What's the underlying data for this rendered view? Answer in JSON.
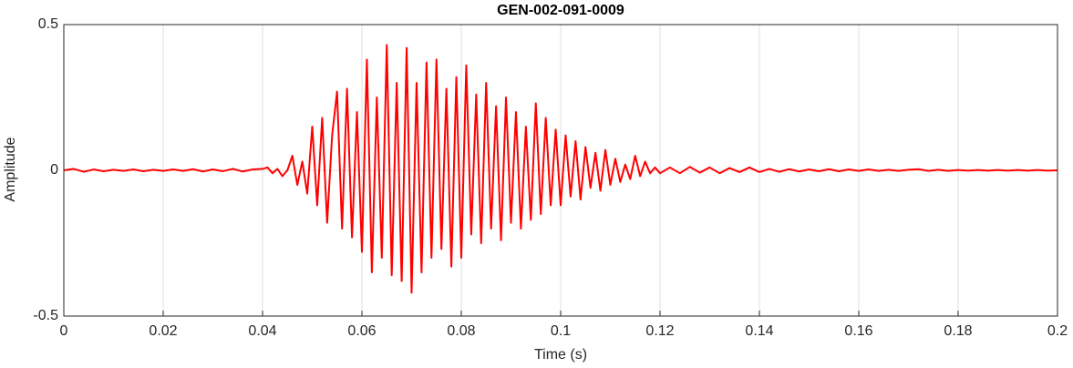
{
  "chart_data": {
    "type": "line",
    "title": "GEN-002-091-0009",
    "xlabel": "Time (s)",
    "ylabel": "Amplitude",
    "x": [
      0,
      0.002,
      0.004,
      0.006,
      0.008,
      0.01,
      0.012,
      0.014,
      0.016,
      0.018,
      0.02,
      0.022,
      0.024,
      0.026,
      0.028,
      0.03,
      0.032,
      0.034,
      0.036,
      0.038,
      0.04,
      0.041,
      0.042,
      0.043,
      0.044,
      0.045,
      0.046,
      0.047,
      0.048,
      0.049,
      0.05,
      0.051,
      0.052,
      0.053,
      0.054,
      0.055,
      0.056,
      0.057,
      0.058,
      0.059,
      0.06,
      0.061,
      0.062,
      0.063,
      0.064,
      0.065,
      0.066,
      0.067,
      0.068,
      0.069,
      0.07,
      0.071,
      0.072,
      0.073,
      0.074,
      0.075,
      0.076,
      0.077,
      0.078,
      0.079,
      0.08,
      0.081,
      0.082,
      0.083,
      0.084,
      0.085,
      0.086,
      0.087,
      0.088,
      0.089,
      0.09,
      0.091,
      0.092,
      0.093,
      0.094,
      0.095,
      0.096,
      0.097,
      0.098,
      0.099,
      0.1,
      0.101,
      0.102,
      0.103,
      0.104,
      0.105,
      0.106,
      0.107,
      0.108,
      0.109,
      0.11,
      0.111,
      0.112,
      0.113,
      0.114,
      0.115,
      0.116,
      0.117,
      0.118,
      0.119,
      0.12,
      0.122,
      0.124,
      0.126,
      0.128,
      0.13,
      0.132,
      0.134,
      0.136,
      0.138,
      0.14,
      0.142,
      0.144,
      0.146,
      0.148,
      0.15,
      0.152,
      0.154,
      0.156,
      0.158,
      0.16,
      0.162,
      0.164,
      0.166,
      0.168,
      0.17,
      0.172,
      0.174,
      0.176,
      0.178,
      0.18,
      0.182,
      0.184,
      0.186,
      0.188,
      0.19,
      0.192,
      0.194,
      0.196,
      0.198,
      0.2
    ],
    "series": [
      {
        "name": "Amplitude",
        "color": "#ff0000",
        "values": [
          0,
          0.005,
          -0.005,
          0.003,
          -0.003,
          0.002,
          -0.002,
          0.003,
          -0.003,
          0.002,
          -0.002,
          0.003,
          -0.002,
          0.004,
          -0.004,
          0.003,
          -0.003,
          0.005,
          -0.004,
          0.003,
          0.005,
          0.01,
          -0.01,
          0.005,
          -0.02,
          0,
          0.05,
          -0.05,
          0.03,
          -0.08,
          0.15,
          -0.12,
          0.18,
          -0.18,
          0.12,
          0.27,
          -0.2,
          0.28,
          -0.23,
          0.2,
          -0.28,
          0.38,
          -0.35,
          0.25,
          -0.3,
          0.43,
          -0.36,
          0.3,
          -0.38,
          0.42,
          -0.42,
          0.3,
          -0.35,
          0.37,
          -0.3,
          0.38,
          -0.27,
          0.28,
          -0.33,
          0.32,
          -0.3,
          0.36,
          -0.22,
          0.26,
          -0.25,
          0.3,
          -0.2,
          0.22,
          -0.24,
          0.25,
          -0.18,
          0.2,
          -0.2,
          0.15,
          -0.17,
          0.23,
          -0.15,
          0.18,
          -0.12,
          0.14,
          -0.12,
          0.12,
          -0.09,
          0.1,
          -0.1,
          0.08,
          -0.06,
          0.06,
          -0.07,
          0.07,
          -0.05,
          0.04,
          -0.04,
          0.02,
          -0.03,
          0.05,
          -0.02,
          0.03,
          -0.01,
          0.01,
          -0.01,
          0.01,
          -0.01,
          0.012,
          -0.008,
          0.01,
          -0.01,
          0.008,
          -0.006,
          0.01,
          -0.006,
          0.005,
          -0.005,
          0.004,
          -0.004,
          0.003,
          -0.003,
          0.004,
          -0.003,
          0.003,
          -0.002,
          0.003,
          -0.002,
          0.002,
          -0.002,
          0.002,
          0.004,
          -0.002,
          0.002,
          -0.002,
          0.001,
          -0.001,
          0.001,
          -0.001,
          0.001,
          -0.001,
          0.001,
          -0.001,
          0.001,
          -0.001,
          0
        ]
      }
    ],
    "xlim": [
      0,
      0.2
    ],
    "xticks": [
      0,
      0.02,
      0.04,
      0.06,
      0.08,
      0.1,
      0.12,
      0.14,
      0.16,
      0.18,
      0.2
    ],
    "ylim": [
      -0.5,
      0.5
    ],
    "yticks": [
      -0.5,
      0,
      0.5
    ],
    "grid": true
  }
}
